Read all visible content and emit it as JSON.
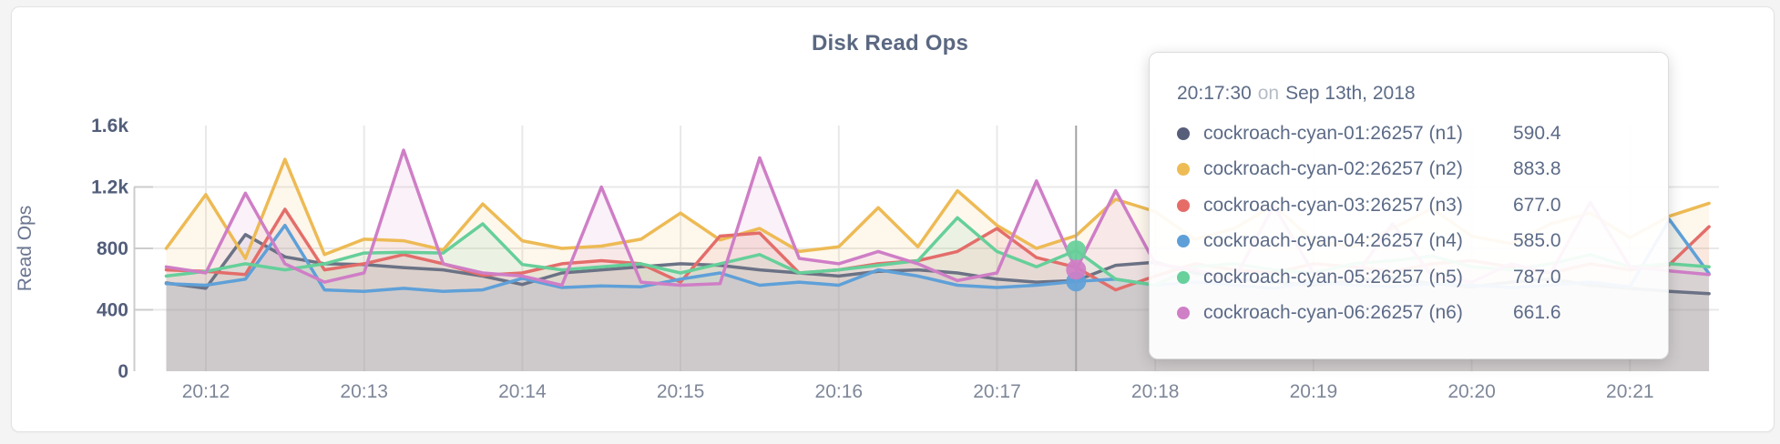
{
  "card": {
    "title": "Disk Read Ops"
  },
  "y_axis": {
    "label": "Read Ops",
    "ticks": [
      {
        "label": "0",
        "value": 0,
        "grid": false
      },
      {
        "label": "400",
        "value": 400,
        "grid": true
      },
      {
        "label": "800",
        "value": 800,
        "grid": true
      },
      {
        "label": "1.2k",
        "value": 1200,
        "grid": true
      },
      {
        "label": "1.6k",
        "value": 1600,
        "grid": false
      }
    ]
  },
  "x_axis": {
    "ticks": [
      "20:12",
      "20:13",
      "20:14",
      "20:15",
      "20:16",
      "20:17",
      "20:18",
      "20:19",
      "20:20",
      "20:21"
    ]
  },
  "tooltip": {
    "time": "20:17:30",
    "conjunction": "on",
    "date": "Sep 13th, 2018",
    "rows": [
      {
        "series": "n1",
        "name": "cockroach-cyan-01:26257 (n1)",
        "value": "590.4",
        "color": "#575e79"
      },
      {
        "series": "n2",
        "name": "cockroach-cyan-02:26257 (n2)",
        "value": "883.8",
        "color": "#eebc55"
      },
      {
        "series": "n3",
        "name": "cockroach-cyan-03:26257 (n3)",
        "value": "677.0",
        "color": "#e66c68"
      },
      {
        "series": "n4",
        "name": "cockroach-cyan-04:26257 (n4)",
        "value": "585.0",
        "color": "#5f9fd8"
      },
      {
        "series": "n5",
        "name": "cockroach-cyan-05:26257 (n5)",
        "value": "787.0",
        "color": "#67d09b"
      },
      {
        "series": "n6",
        "name": "cockroach-cyan-06:26257 (n6)",
        "value": "661.6",
        "color": "#cf7fc6"
      }
    ]
  },
  "chart_data": {
    "type": "line",
    "title": "Disk Read Ops",
    "ylabel": "Read Ops",
    "ylim": [
      0,
      1600
    ],
    "grid": true,
    "x_start": "20:11:45",
    "x_interval_seconds": 15,
    "x_tick_labels": [
      "20:12",
      "20:13",
      "20:14",
      "20:15",
      "20:16",
      "20:17",
      "20:18",
      "20:19",
      "20:20",
      "20:21"
    ],
    "hover": {
      "time": "20:17:30",
      "index": 23,
      "dot_series": [
        "n4",
        "n5",
        "n6"
      ],
      "values": {
        "n1": 590.4,
        "n2": 883.8,
        "n3": 677.0,
        "n4": 585.0,
        "n5": 787.0,
        "n6": 661.6
      }
    },
    "series": [
      {
        "id": "n1",
        "name": "cockroach-cyan-01:26257 (n1)",
        "color": "#6b7285",
        "values": [
          575,
          540,
          890,
          745,
          700,
          695,
          675,
          660,
          620,
          565,
          640,
          660,
          680,
          700,
          690,
          660,
          640,
          620,
          650,
          660,
          640,
          600,
          580,
          590.4,
          690,
          710,
          640,
          600,
          580,
          560,
          590,
          610,
          570,
          550,
          580,
          600,
          560,
          540,
          520,
          505
        ]
      },
      {
        "id": "n2",
        "name": "cockroach-cyan-02:26257 (n2)",
        "color": "#edba54",
        "values": [
          800,
          1150,
          735,
          1380,
          760,
          860,
          850,
          790,
          1090,
          850,
          800,
          815,
          860,
          1030,
          855,
          930,
          780,
          810,
          1065,
          810,
          1176,
          950,
          800,
          883.8,
          1120,
          1040,
          860,
          930,
          1080,
          850,
          810,
          930,
          1060,
          880,
          830,
          960,
          1030,
          870,
          1010,
          1094
        ]
      },
      {
        "id": "n3",
        "name": "cockroach-cyan-03:26257 (n3)",
        "color": "#e36d6a",
        "values": [
          660,
          650,
          630,
          1055,
          660,
          700,
          760,
          700,
          625,
          640,
          700,
          720,
          700,
          580,
          880,
          900,
          640,
          660,
          700,
          720,
          780,
          930,
          740,
          677,
          530,
          620,
          700,
          660,
          640,
          700,
          680,
          650,
          700,
          720,
          680,
          640,
          700,
          660,
          694,
          941
        ]
      },
      {
        "id": "n4",
        "name": "cockroach-cyan-04:26257 (n4)",
        "color": "#5fa0d8",
        "values": [
          570,
          560,
          600,
          950,
          530,
          520,
          540,
          520,
          530,
          605,
          545,
          555,
          550,
          600,
          640,
          560,
          580,
          560,
          660,
          620,
          560,
          545,
          560,
          585,
          600,
          560,
          580,
          560,
          540,
          580,
          560,
          550,
          570,
          560,
          545,
          560,
          580,
          550,
          988,
          635
        ]
      },
      {
        "id": "n5",
        "name": "cockroach-cyan-05:26257 (n5)",
        "color": "#66cf9a",
        "values": [
          620,
          650,
          700,
          660,
          700,
          770,
          775,
          770,
          960,
          695,
          660,
          680,
          700,
          640,
          700,
          760,
          640,
          660,
          690,
          720,
          1000,
          780,
          680,
          787,
          600,
          560,
          680,
          700,
          660,
          640,
          700,
          720,
          750,
          680,
          660,
          700,
          760,
          680,
          700,
          680
        ]
      },
      {
        "id": "n6",
        "name": "cockroach-cyan-06:26257 (n6)",
        "color": "#cf7ec6",
        "values": [
          680,
          640,
          1160,
          700,
          580,
          640,
          1440,
          700,
          640,
          620,
          560,
          1200,
          580,
          560,
          570,
          1390,
          735,
          700,
          780,
          700,
          590,
          640,
          1240,
          661.6,
          1176,
          700,
          660,
          600,
          1080,
          640,
          600,
          960,
          620,
          580,
          700,
          640,
          1100,
          680,
          653,
          630
        ]
      }
    ]
  }
}
